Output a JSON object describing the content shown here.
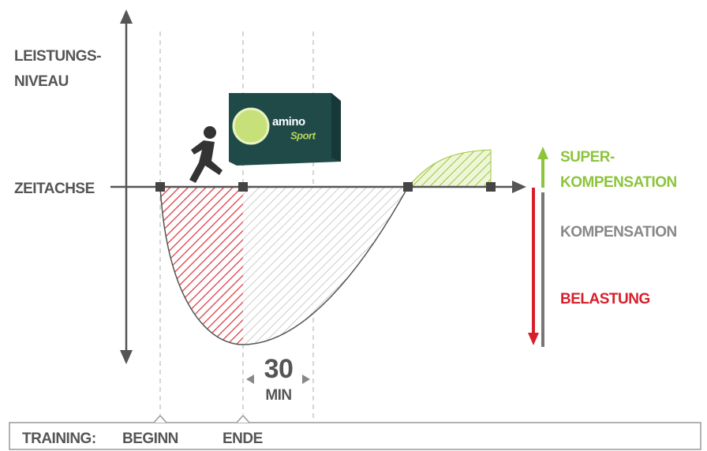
{
  "axis": {
    "y_label_line1": "LEISTUNGS-",
    "y_label_line2": "NIVEAU",
    "x_label": "ZEITACHSE"
  },
  "legend": {
    "super_line1": "SUPER-",
    "super_line2": "KOMPENSATION",
    "kompensation": "KOMPENSATION",
    "belastung": "BELASTUNG"
  },
  "duration": {
    "value": "30",
    "unit": "MIN"
  },
  "product": {
    "brand": "amino",
    "variant": "Sport"
  },
  "timeline": {
    "label": "TRAINING:",
    "start": "BEGINN",
    "end": "ENDE"
  }
}
